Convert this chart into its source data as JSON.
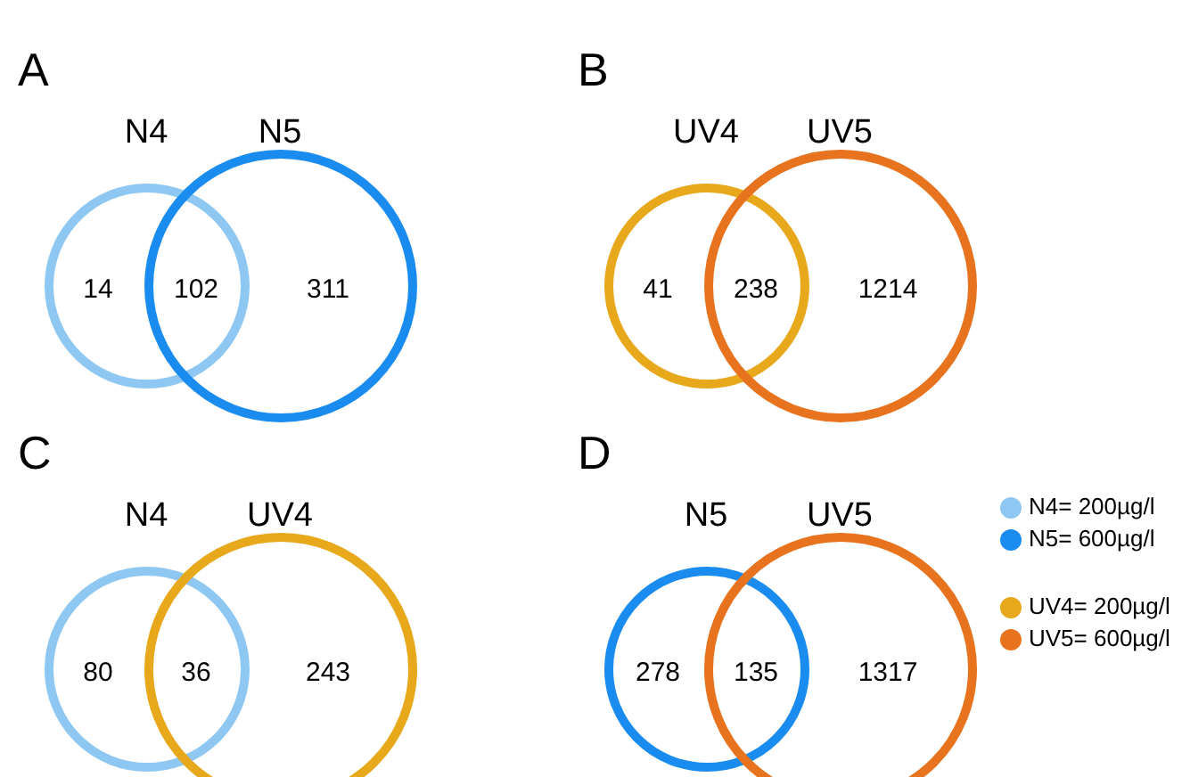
{
  "chart_data": [
    {
      "type": "other",
      "title": "A",
      "annotations": [
        "N4",
        "N5"
      ],
      "categories": [
        null,
        null,
        null
      ],
      "values": [
        14,
        102,
        311
      ],
      "data_labels": true
    },
    {
      "type": "other",
      "title": "B",
      "annotations": [
        "UV4",
        "UV5"
      ],
      "categories": [
        null,
        null,
        null
      ],
      "values": [
        41,
        238,
        1214
      ],
      "data_labels": true
    },
    {
      "type": "other",
      "title": "C",
      "annotations": [
        "N4",
        "UV4"
      ],
      "categories": [
        null,
        null,
        null
      ],
      "values": [
        80,
        36,
        243
      ],
      "data_labels": true
    },
    {
      "type": "other",
      "title": "D",
      "annotations": [
        "N5",
        "UV5"
      ],
      "categories": [
        null,
        null,
        null
      ],
      "values": [
        278,
        135,
        1317
      ],
      "data_labels": true
    },
    {
      "type": "other",
      "annotations": [
        "N4= 200µg/l",
        "N5= 600µg/l",
        "UV4= 200µg/l",
        "UV5= 600µg/l"
      ],
      "colors": [
        "#8ec8f2",
        "#1a8cf0",
        "#e8a81c",
        "#e8731e"
      ]
    }
  ]
}
